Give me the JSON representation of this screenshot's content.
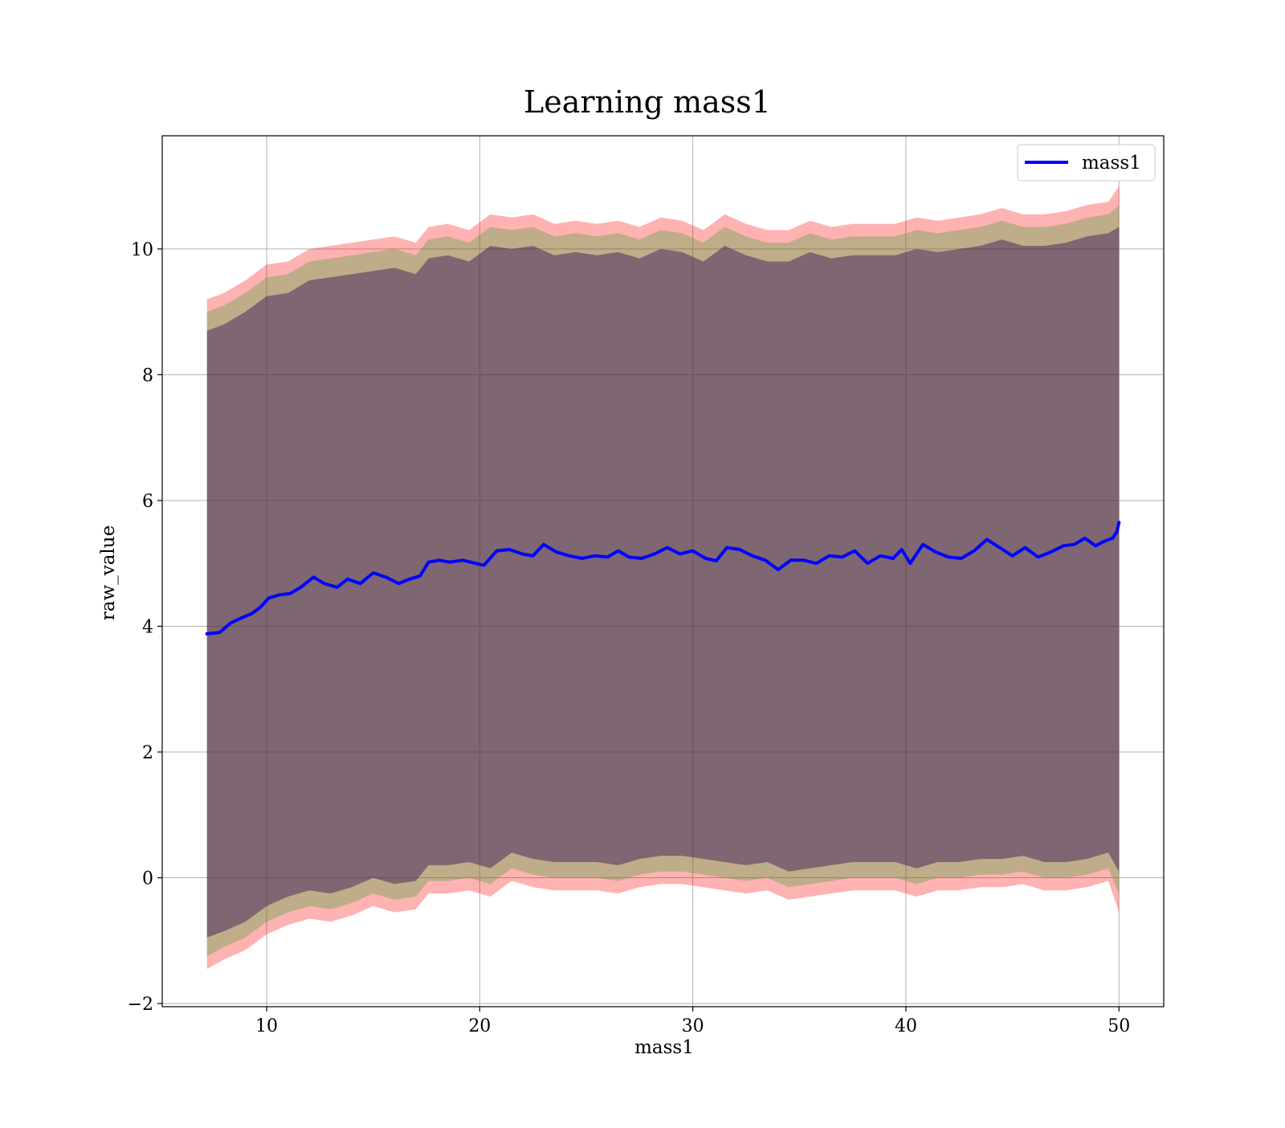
{
  "chart_data": {
    "type": "line",
    "title": "Learning mass1",
    "xlabel": "mass1",
    "ylabel": "raw_value",
    "xlim": [
      5.1,
      52.1
    ],
    "ylim": [
      -2.05,
      11.8
    ],
    "xticks": [
      10,
      20,
      30,
      40,
      50
    ],
    "yticks": [
      -2,
      0,
      2,
      4,
      6,
      8,
      10
    ],
    "xtick_labels": [
      "10",
      "20",
      "30",
      "40",
      "50"
    ],
    "ytick_labels": [
      "−2",
      "0",
      "2",
      "4",
      "6",
      "8",
      "10"
    ],
    "grid": true,
    "legend": {
      "placement": "top-right",
      "entries": [
        "mass1"
      ]
    },
    "series": [
      {
        "name": "mass1",
        "color": "#0000ff",
        "x": [
          7.2,
          7.8,
          8.3,
          8.8,
          9.3,
          9.7,
          10.1,
          10.6,
          11.1,
          11.6,
          12.2,
          12.7,
          13.3,
          13.8,
          14.4,
          15.0,
          15.6,
          16.2,
          16.7,
          17.2,
          17.6,
          18.1,
          18.6,
          19.2,
          19.8,
          20.2,
          20.8,
          21.4,
          22.0,
          22.5,
          23.0,
          23.6,
          24.2,
          24.8,
          25.4,
          26.0,
          26.5,
          27.0,
          27.6,
          28.2,
          28.8,
          29.4,
          30.0,
          30.6,
          31.1,
          31.6,
          32.2,
          32.8,
          33.4,
          34.0,
          34.6,
          35.2,
          35.8,
          36.4,
          37.0,
          37.6,
          38.2,
          38.8,
          39.4,
          39.8,
          40.2,
          40.8,
          41.4,
          42.0,
          42.6,
          43.2,
          43.8,
          44.4,
          45.0,
          45.6,
          46.2,
          46.8,
          47.4,
          47.9,
          48.4,
          48.9,
          49.3,
          49.7,
          49.9,
          50.0
        ],
        "y": [
          3.88,
          3.9,
          4.05,
          4.13,
          4.2,
          4.3,
          4.45,
          4.5,
          4.52,
          4.62,
          4.78,
          4.68,
          4.62,
          4.75,
          4.68,
          4.85,
          4.78,
          4.68,
          4.75,
          4.8,
          5.02,
          5.05,
          5.02,
          5.05,
          5.0,
          4.97,
          5.2,
          5.22,
          5.15,
          5.12,
          5.3,
          5.18,
          5.12,
          5.08,
          5.12,
          5.1,
          5.2,
          5.1,
          5.08,
          5.15,
          5.25,
          5.15,
          5.2,
          5.08,
          5.04,
          5.25,
          5.22,
          5.12,
          5.05,
          4.9,
          5.05,
          5.05,
          5.0,
          5.12,
          5.1,
          5.2,
          5.0,
          5.12,
          5.08,
          5.22,
          5.0,
          5.3,
          5.18,
          5.1,
          5.08,
          5.2,
          5.38,
          5.25,
          5.12,
          5.25,
          5.1,
          5.18,
          5.28,
          5.3,
          5.4,
          5.28,
          5.35,
          5.4,
          5.5,
          5.65
        ]
      }
    ],
    "bands": [
      {
        "color": "#ff0000",
        "opacity": 0.3,
        "x": [
          7.2,
          8.0,
          9.0,
          10.0,
          11.0,
          12.0,
          13.0,
          14.0,
          15.0,
          16.0,
          17.0,
          17.6,
          18.5,
          19.5,
          20.5,
          21.5,
          22.5,
          23.5,
          24.5,
          25.5,
          26.5,
          27.5,
          28.5,
          29.5,
          30.5,
          31.5,
          32.5,
          33.5,
          34.5,
          35.5,
          36.5,
          37.5,
          38.5,
          39.5,
          40.5,
          41.5,
          42.5,
          43.5,
          44.5,
          45.5,
          46.5,
          47.5,
          48.5,
          49.5,
          50.0
        ],
        "upper": [
          9.2,
          9.3,
          9.5,
          9.75,
          9.8,
          10.0,
          10.05,
          10.1,
          10.15,
          10.2,
          10.1,
          10.35,
          10.4,
          10.3,
          10.55,
          10.5,
          10.55,
          10.4,
          10.45,
          10.4,
          10.45,
          10.35,
          10.5,
          10.45,
          10.3,
          10.55,
          10.4,
          10.3,
          10.3,
          10.45,
          10.35,
          10.4,
          10.4,
          10.4,
          10.5,
          10.45,
          10.5,
          10.55,
          10.65,
          10.55,
          10.55,
          10.6,
          10.7,
          10.75,
          11.0
        ],
        "lower": [
          -1.45,
          -1.3,
          -1.15,
          -0.9,
          -0.75,
          -0.65,
          -0.7,
          -0.6,
          -0.45,
          -0.55,
          -0.5,
          -0.25,
          -0.25,
          -0.2,
          -0.3,
          -0.05,
          -0.15,
          -0.2,
          -0.2,
          -0.2,
          -0.25,
          -0.15,
          -0.1,
          -0.1,
          -0.15,
          -0.2,
          -0.25,
          -0.2,
          -0.35,
          -0.3,
          -0.25,
          -0.2,
          -0.2,
          -0.2,
          -0.3,
          -0.2,
          -0.2,
          -0.15,
          -0.15,
          -0.1,
          -0.2,
          -0.2,
          -0.15,
          -0.05,
          -0.55
        ]
      },
      {
        "color": "#2ca02c",
        "opacity": 0.3,
        "x": [
          7.2,
          8.0,
          9.0,
          10.0,
          11.0,
          12.0,
          13.0,
          14.0,
          15.0,
          16.0,
          17.0,
          17.6,
          18.5,
          19.5,
          20.5,
          21.5,
          22.5,
          23.5,
          24.5,
          25.5,
          26.5,
          27.5,
          28.5,
          29.5,
          30.5,
          31.5,
          32.5,
          33.5,
          34.5,
          35.5,
          36.5,
          37.5,
          38.5,
          39.5,
          40.5,
          41.5,
          42.5,
          43.5,
          44.5,
          45.5,
          46.5,
          47.5,
          48.5,
          49.5,
          50.0
        ],
        "upper": [
          9.0,
          9.1,
          9.3,
          9.55,
          9.6,
          9.8,
          9.85,
          9.9,
          9.95,
          10.0,
          9.9,
          10.15,
          10.2,
          10.1,
          10.35,
          10.3,
          10.35,
          10.2,
          10.25,
          10.2,
          10.25,
          10.15,
          10.3,
          10.25,
          10.1,
          10.35,
          10.2,
          10.1,
          10.1,
          10.25,
          10.15,
          10.2,
          10.2,
          10.2,
          10.3,
          10.25,
          10.3,
          10.35,
          10.45,
          10.35,
          10.35,
          10.4,
          10.5,
          10.55,
          10.7
        ],
        "lower": [
          -1.25,
          -1.1,
          -0.95,
          -0.7,
          -0.55,
          -0.45,
          -0.5,
          -0.4,
          -0.25,
          -0.35,
          -0.3,
          -0.05,
          -0.05,
          0.0,
          -0.1,
          0.15,
          0.05,
          0.0,
          0.0,
          0.0,
          -0.05,
          0.05,
          0.1,
          0.1,
          0.05,
          0.0,
          -0.05,
          0.0,
          -0.15,
          -0.1,
          -0.05,
          0.0,
          0.0,
          0.0,
          -0.1,
          0.0,
          0.0,
          0.05,
          0.05,
          0.1,
          0.0,
          0.0,
          0.05,
          0.15,
          -0.25
        ]
      },
      {
        "color": "#1f0050",
        "opacity": 0.4,
        "x": [
          7.2,
          8.0,
          9.0,
          10.0,
          11.0,
          12.0,
          13.0,
          14.0,
          15.0,
          16.0,
          17.0,
          17.6,
          18.5,
          19.5,
          20.5,
          21.5,
          22.5,
          23.5,
          24.5,
          25.5,
          26.5,
          27.5,
          28.5,
          29.5,
          30.5,
          31.5,
          32.5,
          33.5,
          34.5,
          35.5,
          36.5,
          37.5,
          38.5,
          39.5,
          40.5,
          41.5,
          42.5,
          43.5,
          44.5,
          45.5,
          46.5,
          47.5,
          48.5,
          49.5,
          50.0
        ],
        "upper": [
          8.7,
          8.8,
          9.0,
          9.25,
          9.3,
          9.5,
          9.55,
          9.6,
          9.65,
          9.7,
          9.6,
          9.85,
          9.9,
          9.8,
          10.05,
          10.0,
          10.05,
          9.9,
          9.95,
          9.9,
          9.95,
          9.85,
          10.0,
          9.95,
          9.8,
          10.05,
          9.9,
          9.8,
          9.8,
          9.95,
          9.85,
          9.9,
          9.9,
          9.9,
          10.0,
          9.95,
          10.0,
          10.05,
          10.15,
          10.05,
          10.05,
          10.1,
          10.2,
          10.25,
          10.35
        ],
        "lower": [
          -0.95,
          -0.85,
          -0.7,
          -0.45,
          -0.3,
          -0.2,
          -0.25,
          -0.15,
          0.0,
          -0.1,
          -0.05,
          0.2,
          0.2,
          0.25,
          0.15,
          0.4,
          0.3,
          0.25,
          0.25,
          0.25,
          0.2,
          0.3,
          0.35,
          0.35,
          0.3,
          0.25,
          0.2,
          0.25,
          0.1,
          0.15,
          0.2,
          0.25,
          0.25,
          0.25,
          0.15,
          0.25,
          0.25,
          0.3,
          0.3,
          0.35,
          0.25,
          0.25,
          0.3,
          0.4,
          0.1
        ]
      }
    ]
  }
}
